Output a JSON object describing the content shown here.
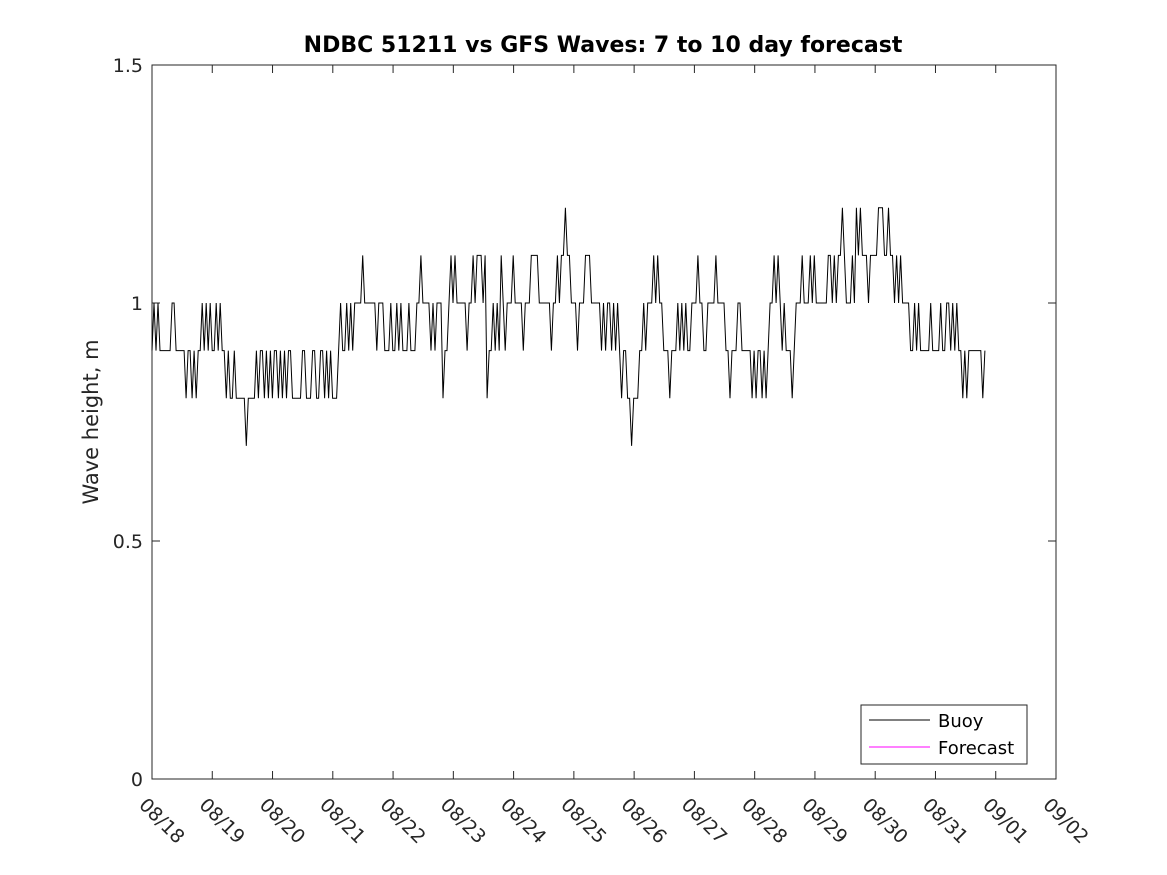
{
  "chart_data": {
    "type": "line",
    "title": "NDBC 51211 vs GFS Waves: 7 to 10 day forecast",
    "xlabel": "",
    "ylabel": "Wave height, m",
    "ylim": [
      0,
      1.5
    ],
    "xlim": [
      0,
      15
    ],
    "y_ticks": [
      0,
      0.5,
      1,
      1.5
    ],
    "y_tick_labels": [
      "0",
      "0.5",
      "1",
      "1.5"
    ],
    "x_ticks": [
      0,
      1,
      2,
      3,
      4,
      5,
      6,
      7,
      8,
      9,
      10,
      11,
      12,
      13,
      14,
      15
    ],
    "x_tick_labels": [
      "08/18",
      "08/19",
      "08/20",
      "08/21",
      "08/22",
      "08/23",
      "08/24",
      "08/25",
      "08/26",
      "08/27",
      "08/28",
      "08/29",
      "08/30",
      "08/31",
      "09/01",
      "09/02"
    ],
    "x_units": "days since 08/18",
    "legend": {
      "position": "bottom-right",
      "entries": [
        "Buoy",
        "Forecast"
      ]
    },
    "series": [
      {
        "name": "Buoy",
        "color": "#000000",
        "x_start": 0.0,
        "x_step": 0.0333,
        "values": [
          0.9,
          1.0,
          0.9,
          1.0,
          0.9,
          0.9,
          0.9,
          0.9,
          0.9,
          0.9,
          1.0,
          1.0,
          0.9,
          0.9,
          0.9,
          0.9,
          0.9,
          0.8,
          0.9,
          0.9,
          0.8,
          0.9,
          0.8,
          0.9,
          0.9,
          1.0,
          0.9,
          1.0,
          0.9,
          1.0,
          0.9,
          0.9,
          1.0,
          0.9,
          1.0,
          0.9,
          0.9,
          0.8,
          0.9,
          0.8,
          0.8,
          0.9,
          0.8,
          0.8,
          0.8,
          0.8,
          0.8,
          0.7,
          0.8,
          0.8,
          0.8,
          0.8,
          0.9,
          0.8,
          0.9,
          0.9,
          0.8,
          0.9,
          0.8,
          0.9,
          0.8,
          0.9,
          0.9,
          0.8,
          0.9,
          0.8,
          0.9,
          0.8,
          0.9,
          0.9,
          0.8,
          0.8,
          0.8,
          0.8,
          0.8,
          0.9,
          0.9,
          0.8,
          0.8,
          0.8,
          0.9,
          0.9,
          0.8,
          0.8,
          0.9,
          0.9,
          0.8,
          0.9,
          0.8,
          0.9,
          0.8,
          0.8,
          0.8,
          0.9,
          1.0,
          0.9,
          0.9,
          1.0,
          0.9,
          1.0,
          0.9,
          1.0,
          1.0,
          1.0,
          1.0,
          1.1,
          1.0,
          1.0,
          1.0,
          1.0,
          1.0,
          1.0,
          0.9,
          1.0,
          1.0,
          1.0,
          0.9,
          0.9,
          0.9,
          1.0,
          0.9,
          0.9,
          1.0,
          0.9,
          1.0,
          0.9,
          0.9,
          0.9,
          1.0,
          0.9,
          0.9,
          0.9,
          1.0,
          1.0,
          1.1,
          1.0,
          1.0,
          1.0,
          1.0,
          0.9,
          1.0,
          0.9,
          1.0,
          1.0,
          1.0,
          0.8,
          0.9,
          0.9,
          1.0,
          1.1,
          1.0,
          1.1,
          1.0,
          1.0,
          1.0,
          1.0,
          1.0,
          0.9,
          1.0,
          1.0,
          1.1,
          1.0,
          1.1,
          1.1,
          1.1,
          1.0,
          1.1,
          0.8,
          0.9,
          0.9,
          1.0,
          0.9,
          1.0,
          0.9,
          1.1,
          1.0,
          0.9,
          1.0,
          1.0,
          1.0,
          1.1,
          1.0,
          1.0,
          1.0,
          1.0,
          0.9,
          1.0,
          1.0,
          1.0,
          1.1,
          1.1,
          1.1,
          1.1,
          1.0,
          1.0,
          1.0,
          1.0,
          1.0,
          1.0,
          0.9,
          1.0,
          1.0,
          1.1,
          1.0,
          1.1,
          1.1,
          1.2,
          1.1,
          1.1,
          1.0,
          1.0,
          1.0,
          0.9,
          1.0,
          1.0,
          1.0,
          1.1,
          1.1,
          1.1,
          1.0,
          1.0,
          1.0,
          1.0,
          1.0,
          0.9,
          1.0,
          0.9,
          1.0,
          1.0,
          0.9,
          1.0,
          0.9,
          1.0,
          0.9,
          0.8,
          0.9,
          0.9,
          0.8,
          0.8,
          0.7,
          0.8,
          0.8,
          0.8,
          0.9,
          0.9,
          1.0,
          0.9,
          1.0,
          1.0,
          1.0,
          1.1,
          1.0,
          1.1,
          1.0,
          1.0,
          0.9,
          0.9,
          0.9,
          0.8,
          0.9,
          0.9,
          0.9,
          1.0,
          0.9,
          1.0,
          0.9,
          1.0,
          0.9,
          0.9,
          1.0,
          1.0,
          1.0,
          1.1,
          1.0,
          1.0,
          0.9,
          0.9,
          1.0,
          1.0,
          1.0,
          1.0,
          1.1,
          1.0,
          1.0,
          1.0,
          1.0,
          0.9,
          0.9,
          0.8,
          0.9,
          0.9,
          0.9,
          1.0,
          1.0,
          0.9,
          0.9,
          0.9,
          0.9,
          0.9,
          0.8,
          0.9,
          0.8,
          0.9,
          0.9,
          0.8,
          0.9,
          0.8,
          0.9,
          1.0,
          1.0,
          1.1,
          1.0,
          1.1,
          1.0,
          0.9,
          1.0,
          0.9,
          0.9,
          0.9,
          0.8,
          0.9,
          1.0,
          1.0,
          1.0,
          1.1,
          1.0,
          1.0,
          1.0,
          1.1,
          1.0,
          1.1,
          1.0,
          1.0,
          1.0,
          1.0,
          1.0,
          1.0,
          1.1,
          1.1,
          1.0,
          1.1,
          1.0,
          1.1,
          1.1,
          1.2,
          1.1,
          1.0,
          1.0,
          1.0,
          1.1,
          1.0,
          1.2,
          1.1,
          1.2,
          1.1,
          1.1,
          1.1,
          1.0,
          1.1,
          1.1,
          1.1,
          1.1,
          1.2,
          1.2,
          1.2,
          1.1,
          1.1,
          1.2,
          1.1,
          1.1,
          1.0,
          1.1,
          1.0,
          1.1,
          1.0,
          1.0,
          1.0,
          1.0,
          0.9,
          0.9,
          1.0,
          0.9,
          1.0,
          0.9,
          0.9,
          0.9,
          0.9,
          0.9,
          1.0,
          0.9,
          0.9,
          0.9,
          0.9,
          1.0,
          0.9,
          0.9,
          1.0,
          1.0,
          0.9,
          1.0,
          0.9,
          1.0,
          0.9,
          0.9,
          0.8,
          0.9,
          0.8,
          0.9,
          0.9,
          0.9,
          0.9,
          0.9,
          0.9,
          0.9,
          0.8,
          0.9
        ]
      },
      {
        "name": "Forecast",
        "color": "#ff00ff",
        "values": []
      }
    ]
  }
}
